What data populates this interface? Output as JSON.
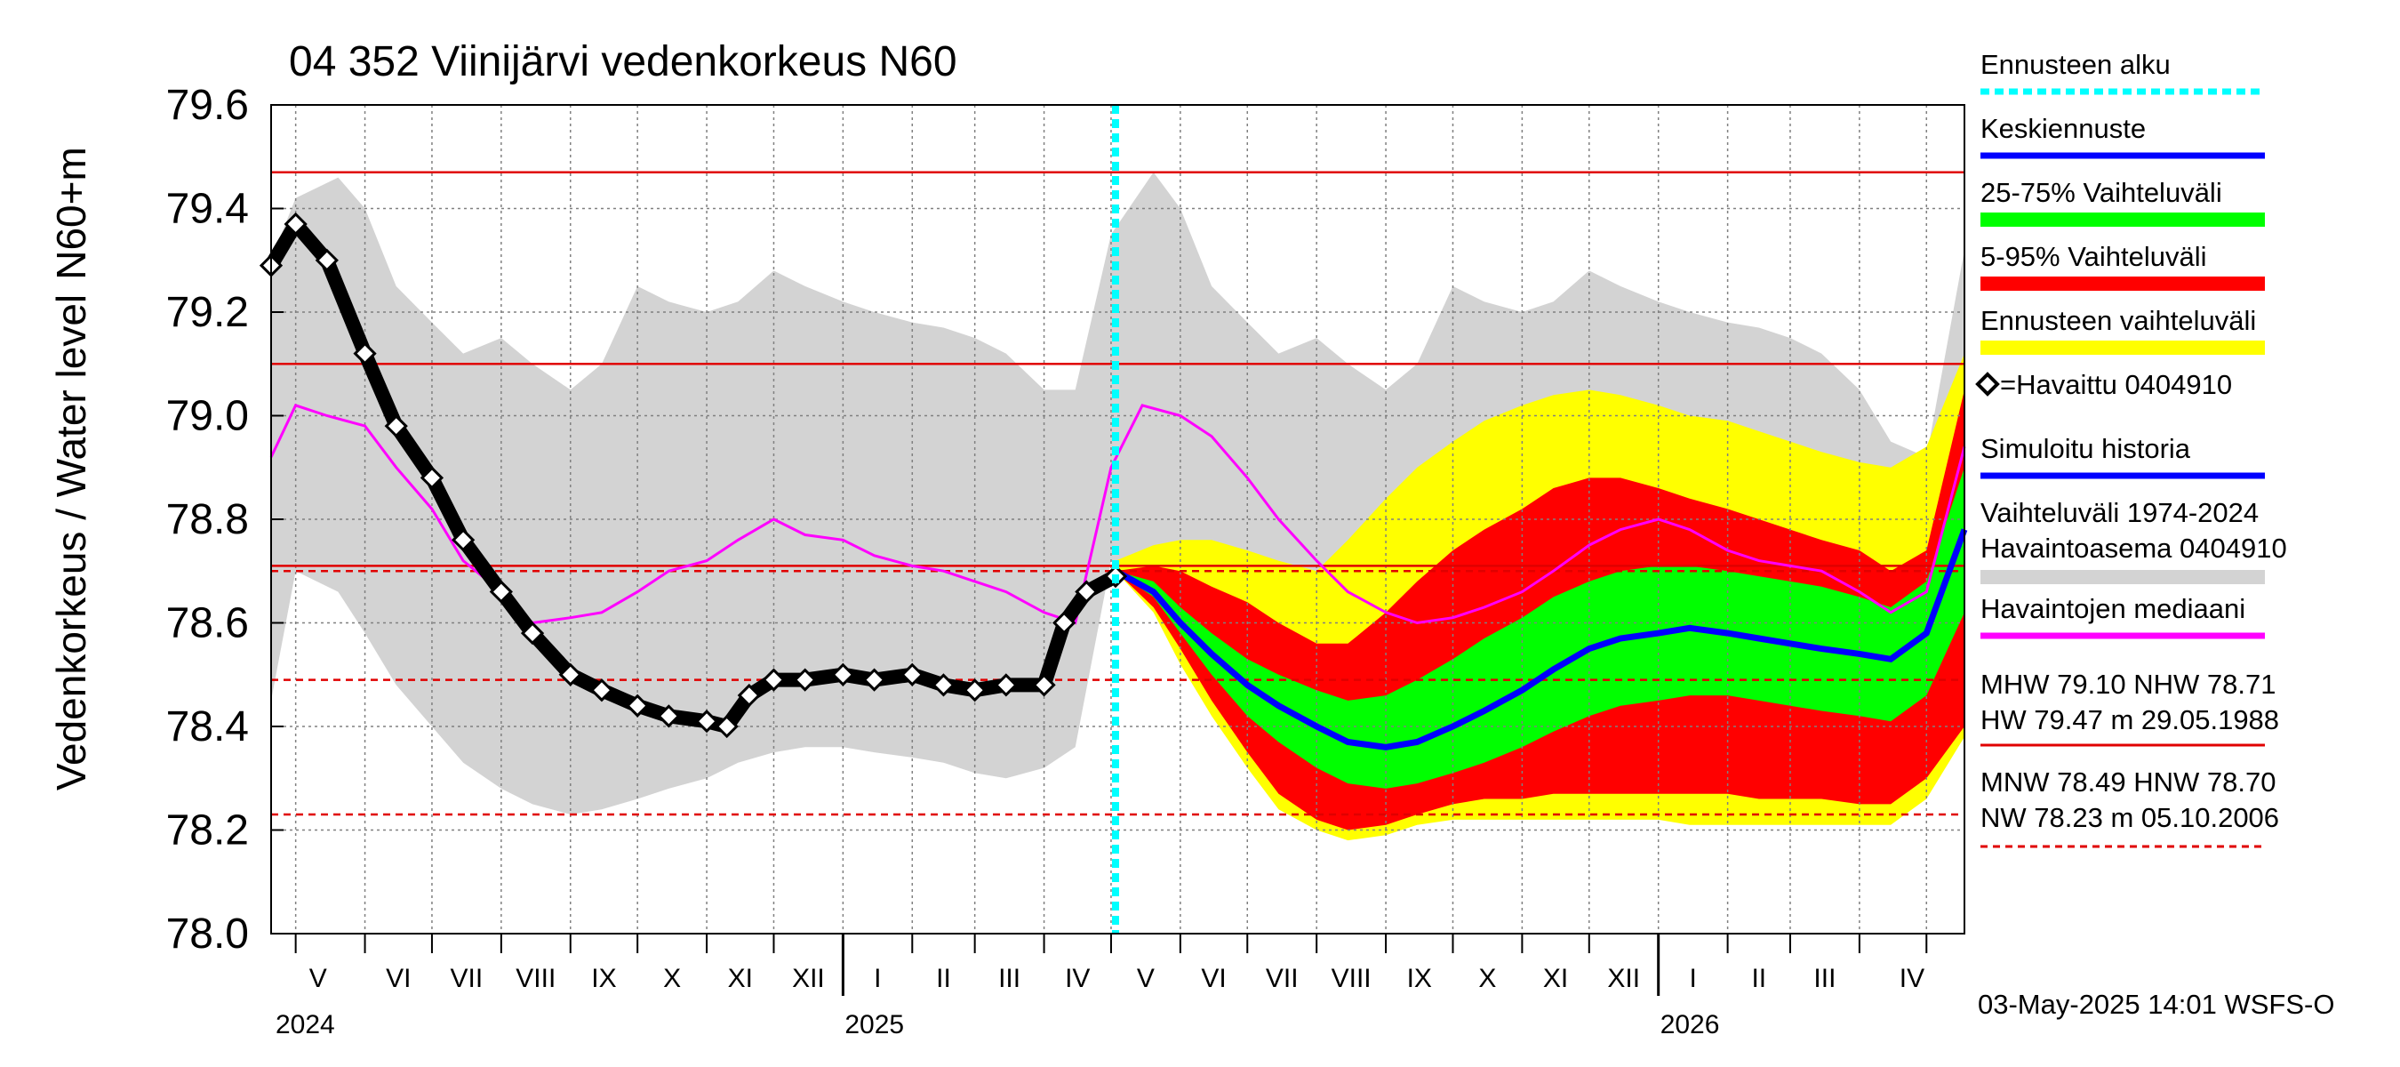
{
  "chart_data": {
    "type": "line",
    "title": "04 352 Viinijärvi vedenkorkeus N60",
    "ylabel_outer": "Vedenkorkeus / Water level",
    "ylabel_inner": "N60+m",
    "ylim": [
      78.0,
      79.6
    ],
    "yticks": [
      "78.0",
      "78.2",
      "78.4",
      "78.6",
      "78.8",
      "79.0",
      "79.2",
      "79.4",
      "79.6"
    ],
    "x_range": [
      "2024-04-20",
      "2026-05-18"
    ],
    "forecast_start": "2025-05-03",
    "months": [
      "V",
      "VI",
      "VII",
      "VIII",
      "IX",
      "X",
      "XI",
      "XII",
      "I",
      "II",
      "III",
      "IV",
      "V",
      "VI",
      "VII",
      "VIII",
      "IX",
      "X",
      "XI",
      "XII",
      "I",
      "II",
      "III",
      "IV"
    ],
    "years": [
      "2024",
      "2025",
      "2026"
    ],
    "reference_lines": [
      {
        "name": "HW",
        "value": 79.47,
        "style": "solid"
      },
      {
        "name": "MHW",
        "value": 79.1,
        "style": "solid"
      },
      {
        "name": "NHW",
        "value": 78.71,
        "style": "solid"
      },
      {
        "name": "HNW",
        "value": 78.7,
        "style": "dashed"
      },
      {
        "name": "MNW",
        "value": 78.49,
        "style": "dashed"
      },
      {
        "name": "NW",
        "value": 78.23,
        "style": "dashed"
      }
    ],
    "series": [
      {
        "name": "=Havaittu 0404910",
        "x": [
          "2024-04-20",
          "2024-05-01",
          "2024-05-15",
          "2024-06-01",
          "2024-06-15",
          "2024-07-01",
          "2024-07-15",
          "2024-08-01",
          "2024-08-15",
          "2024-09-01",
          "2024-09-15",
          "2024-10-01",
          "2024-10-15",
          "2024-11-01",
          "2024-11-10",
          "2024-11-20",
          "2024-12-01",
          "2024-12-15",
          "2025-01-01",
          "2025-01-15",
          "2025-02-01",
          "2025-02-15",
          "2025-03-01",
          "2025-03-15",
          "2025-04-01",
          "2025-04-10",
          "2025-04-20",
          "2025-05-03"
        ],
        "values": [
          79.29,
          79.37,
          79.3,
          79.12,
          78.98,
          78.88,
          78.76,
          78.66,
          78.58,
          78.5,
          78.47,
          78.44,
          78.42,
          78.41,
          78.4,
          78.46,
          78.49,
          78.49,
          78.5,
          78.49,
          78.5,
          78.48,
          78.47,
          78.48,
          78.48,
          78.6,
          78.66,
          78.69
        ]
      },
      {
        "name": "Keskiennuste",
        "x": [
          "2025-05-03",
          "2025-05-20",
          "2025-06-01",
          "2025-06-15",
          "2025-07-01",
          "2025-07-15",
          "2025-08-01",
          "2025-08-15",
          "2025-09-01",
          "2025-09-15",
          "2025-10-01",
          "2025-10-15",
          "2025-11-01",
          "2025-11-15",
          "2025-12-01",
          "2025-12-15",
          "2026-01-01",
          "2026-01-15",
          "2026-02-01",
          "2026-02-15",
          "2026-03-01",
          "2026-03-15",
          "2026-04-01",
          "2026-04-15",
          "2026-05-01",
          "2026-05-18"
        ],
        "values": [
          78.7,
          78.66,
          78.6,
          78.54,
          78.48,
          78.44,
          78.4,
          78.37,
          78.36,
          78.37,
          78.4,
          78.43,
          78.47,
          78.51,
          78.55,
          78.57,
          78.58,
          78.59,
          78.58,
          78.57,
          78.56,
          78.55,
          78.54,
          78.53,
          78.58,
          78.78
        ]
      },
      {
        "name": "Havaintojen mediaani",
        "x": [
          "2024-04-20",
          "2024-05-01",
          "2024-05-15",
          "2024-06-01",
          "2024-06-15",
          "2024-07-01",
          "2024-07-15",
          "2024-08-01",
          "2024-08-15",
          "2024-09-01",
          "2024-09-15",
          "2024-10-01",
          "2024-10-15",
          "2024-11-01",
          "2024-11-15",
          "2024-12-01",
          "2024-12-15",
          "2025-01-01",
          "2025-01-15",
          "2025-02-01",
          "2025-02-15",
          "2025-03-01",
          "2025-03-15",
          "2025-04-01",
          "2025-04-15",
          "2025-05-01",
          "2025-05-15",
          "2025-06-01",
          "2025-06-15",
          "2025-07-01",
          "2025-07-15",
          "2025-08-01",
          "2025-08-15",
          "2025-09-01",
          "2025-09-15",
          "2025-10-01",
          "2025-10-15",
          "2025-11-01",
          "2025-11-15",
          "2025-12-01",
          "2025-12-15",
          "2026-01-01",
          "2026-01-15",
          "2026-02-01",
          "2026-02-15",
          "2026-03-01",
          "2026-03-15",
          "2026-04-01",
          "2026-04-15",
          "2026-05-01",
          "2026-05-18"
        ],
        "values": [
          78.92,
          79.02,
          79.0,
          78.98,
          78.9,
          78.82,
          78.72,
          78.66,
          78.6,
          78.61,
          78.62,
          78.66,
          78.7,
          78.72,
          78.76,
          78.8,
          78.77,
          78.76,
          78.73,
          78.71,
          78.7,
          78.68,
          78.66,
          78.62,
          78.6,
          78.9,
          79.02,
          79.0,
          78.96,
          78.88,
          78.8,
          78.72,
          78.66,
          78.62,
          78.6,
          78.61,
          78.63,
          78.66,
          78.7,
          78.75,
          78.78,
          78.8,
          78.78,
          78.74,
          78.72,
          78.71,
          78.7,
          78.66,
          78.62,
          78.66,
          78.94
        ]
      }
    ],
    "bands": [
      {
        "name": "Vaihteluväli 1974-2024 Havaintoasema 0404910",
        "color": "#d3d3d3",
        "x": [
          "2024-04-20",
          "2024-05-01",
          "2024-05-20",
          "2024-06-01",
          "2024-06-15",
          "2024-07-01",
          "2024-07-15",
          "2024-08-01",
          "2024-08-15",
          "2024-09-01",
          "2024-09-15",
          "2024-10-01",
          "2024-10-15",
          "2024-11-01",
          "2024-11-15",
          "2024-12-01",
          "2024-12-15",
          "2025-01-01",
          "2025-01-15",
          "2025-02-01",
          "2025-02-15",
          "2025-03-01",
          "2025-03-15",
          "2025-04-01",
          "2025-04-15",
          "2025-05-01",
          "2025-05-20",
          "2025-06-01",
          "2025-06-15",
          "2025-07-01",
          "2025-07-15",
          "2025-08-01",
          "2025-08-15",
          "2025-09-01",
          "2025-09-15",
          "2025-10-01",
          "2025-10-15",
          "2025-11-01",
          "2025-11-15",
          "2025-12-01",
          "2025-12-15",
          "2026-01-01",
          "2026-01-15",
          "2026-02-01",
          "2026-02-15",
          "2026-03-01",
          "2026-03-15",
          "2026-04-01",
          "2026-04-15",
          "2026-05-01",
          "2026-05-18"
        ],
        "lower": [
          78.45,
          78.7,
          78.66,
          78.58,
          78.48,
          78.4,
          78.33,
          78.28,
          78.25,
          78.23,
          78.24,
          78.26,
          78.28,
          78.3,
          78.33,
          78.35,
          78.36,
          78.36,
          78.35,
          78.34,
          78.33,
          78.31,
          78.3,
          78.32,
          78.36,
          78.72,
          78.68,
          78.6,
          78.5,
          78.42,
          78.35,
          78.3,
          78.27,
          78.25,
          78.24,
          78.26,
          78.28,
          78.3,
          78.32,
          78.35,
          78.36,
          78.37,
          78.36,
          78.35,
          78.34,
          78.33,
          78.32,
          78.33,
          78.36,
          78.4,
          78.49
        ],
        "upper": [
          79.3,
          79.42,
          79.46,
          79.4,
          79.25,
          79.18,
          79.12,
          79.15,
          79.1,
          79.05,
          79.1,
          79.25,
          79.22,
          79.2,
          79.22,
          79.28,
          79.25,
          79.22,
          79.2,
          79.18,
          79.17,
          79.15,
          79.12,
          79.05,
          79.05,
          79.35,
          79.47,
          79.4,
          79.25,
          79.18,
          79.12,
          79.15,
          79.1,
          79.05,
          79.1,
          79.25,
          79.22,
          79.2,
          79.22,
          79.28,
          79.25,
          79.22,
          79.2,
          79.18,
          79.17,
          79.15,
          79.12,
          79.05,
          78.95,
          78.92,
          79.32
        ]
      },
      {
        "name": "Ennusteen vaihteluväli",
        "color": "#ffff00",
        "x": [
          "2025-05-03",
          "2025-05-20",
          "2025-06-01",
          "2025-06-15",
          "2025-07-01",
          "2025-07-15",
          "2025-08-01",
          "2025-08-15",
          "2025-09-01",
          "2025-09-15",
          "2025-10-01",
          "2025-10-15",
          "2025-11-01",
          "2025-11-15",
          "2025-12-01",
          "2025-12-15",
          "2026-01-01",
          "2026-01-15",
          "2026-02-01",
          "2026-02-15",
          "2026-03-01",
          "2026-03-15",
          "2026-04-01",
          "2026-04-15",
          "2026-05-01",
          "2026-05-18"
        ],
        "lower": [
          78.7,
          78.62,
          78.52,
          78.42,
          78.32,
          78.24,
          78.2,
          78.18,
          78.19,
          78.21,
          78.22,
          78.22,
          78.22,
          78.22,
          78.22,
          78.22,
          78.22,
          78.21,
          78.21,
          78.21,
          78.21,
          78.21,
          78.21,
          78.21,
          78.26,
          78.38
        ],
        "upper": [
          78.72,
          78.75,
          78.76,
          78.76,
          78.74,
          78.72,
          78.7,
          78.76,
          78.84,
          78.9,
          78.95,
          78.99,
          79.02,
          79.04,
          79.05,
          79.04,
          79.02,
          79.0,
          78.99,
          78.97,
          78.95,
          78.93,
          78.91,
          78.9,
          78.94,
          79.12
        ]
      },
      {
        "name": "5-95% Vaihteluväli",
        "color": "#ff0000",
        "x": [
          "2025-05-03",
          "2025-05-20",
          "2025-06-01",
          "2025-06-15",
          "2025-07-01",
          "2025-07-15",
          "2025-08-01",
          "2025-08-15",
          "2025-09-01",
          "2025-09-15",
          "2025-10-01",
          "2025-10-15",
          "2025-11-01",
          "2025-11-15",
          "2025-12-01",
          "2025-12-15",
          "2026-01-01",
          "2026-01-15",
          "2026-02-01",
          "2026-02-15",
          "2026-03-01",
          "2026-03-15",
          "2026-04-01",
          "2026-04-15",
          "2026-05-01",
          "2026-05-18"
        ],
        "lower": [
          78.7,
          78.63,
          78.55,
          78.45,
          78.35,
          78.27,
          78.22,
          78.2,
          78.21,
          78.23,
          78.25,
          78.26,
          78.26,
          78.27,
          78.27,
          78.27,
          78.27,
          78.27,
          78.27,
          78.26,
          78.26,
          78.26,
          78.25,
          78.25,
          78.3,
          78.4
        ],
        "upper": [
          78.7,
          78.71,
          78.7,
          78.67,
          78.64,
          78.6,
          78.56,
          78.56,
          78.62,
          78.68,
          78.74,
          78.78,
          78.82,
          78.86,
          78.88,
          78.88,
          78.86,
          78.84,
          78.82,
          78.8,
          78.78,
          78.76,
          78.74,
          78.7,
          78.74,
          79.05
        ]
      },
      {
        "name": "25-75% Vaihteluväli",
        "color": "#00ff00",
        "x": [
          "2025-05-03",
          "2025-05-20",
          "2025-06-01",
          "2025-06-15",
          "2025-07-01",
          "2025-07-15",
          "2025-08-01",
          "2025-08-15",
          "2025-09-01",
          "2025-09-15",
          "2025-10-01",
          "2025-10-15",
          "2025-11-01",
          "2025-11-15",
          "2025-12-01",
          "2025-12-15",
          "2026-01-01",
          "2026-01-15",
          "2026-02-01",
          "2026-02-15",
          "2026-03-01",
          "2026-03-15",
          "2026-04-01",
          "2026-04-15",
          "2026-05-01",
          "2026-05-18"
        ],
        "lower": [
          78.7,
          78.65,
          78.58,
          78.5,
          78.42,
          78.37,
          78.32,
          78.29,
          78.28,
          78.29,
          78.31,
          78.33,
          78.36,
          78.39,
          78.42,
          78.44,
          78.45,
          78.46,
          78.46,
          78.45,
          78.44,
          78.43,
          78.42,
          78.41,
          78.46,
          78.62
        ],
        "upper": [
          78.7,
          78.68,
          78.63,
          78.58,
          78.53,
          78.5,
          78.47,
          78.45,
          78.46,
          78.49,
          78.53,
          78.57,
          78.61,
          78.65,
          78.68,
          78.7,
          78.71,
          78.71,
          78.7,
          78.69,
          78.68,
          78.67,
          78.65,
          78.63,
          78.68,
          78.9
        ]
      }
    ]
  },
  "legend": [
    {
      "label": "Ennusteen alku",
      "color": "#00ffff",
      "kind": "dashed"
    },
    {
      "label": "Keskiennuste",
      "color": "#0000ff",
      "kind": "line"
    },
    {
      "label": "25-75% Vaihteluväli",
      "color": "#00ff00",
      "kind": "band"
    },
    {
      "label": "5-95% Vaihteluväli",
      "color": "#ff0000",
      "kind": "band"
    },
    {
      "label": "Ennusteen vaihteluväli",
      "color": "#ffff00",
      "kind": "band"
    },
    {
      "label": "=Havaittu 0404910",
      "color": "#000000",
      "kind": "marker"
    },
    {
      "label": "Simuloitu historia",
      "color": "#0000ff",
      "kind": "line"
    },
    {
      "label": "Vaihteluväli 1974-2024",
      "label2": " Havaintoasema 0404910",
      "color": "#d3d3d3",
      "kind": "band"
    },
    {
      "label": "Havaintojen mediaani",
      "color": "#ff00ff",
      "kind": "line"
    }
  ],
  "stats": {
    "line1": "MHW  79.10 NHW  78.71",
    "line2": "HW  79.47 m 29.05.1988",
    "line3": "MNW  78.49 HNW  78.70",
    "line4": "NW  78.23 m 05.10.2006"
  },
  "footer": "03-May-2025 14:01 WSFS-O"
}
